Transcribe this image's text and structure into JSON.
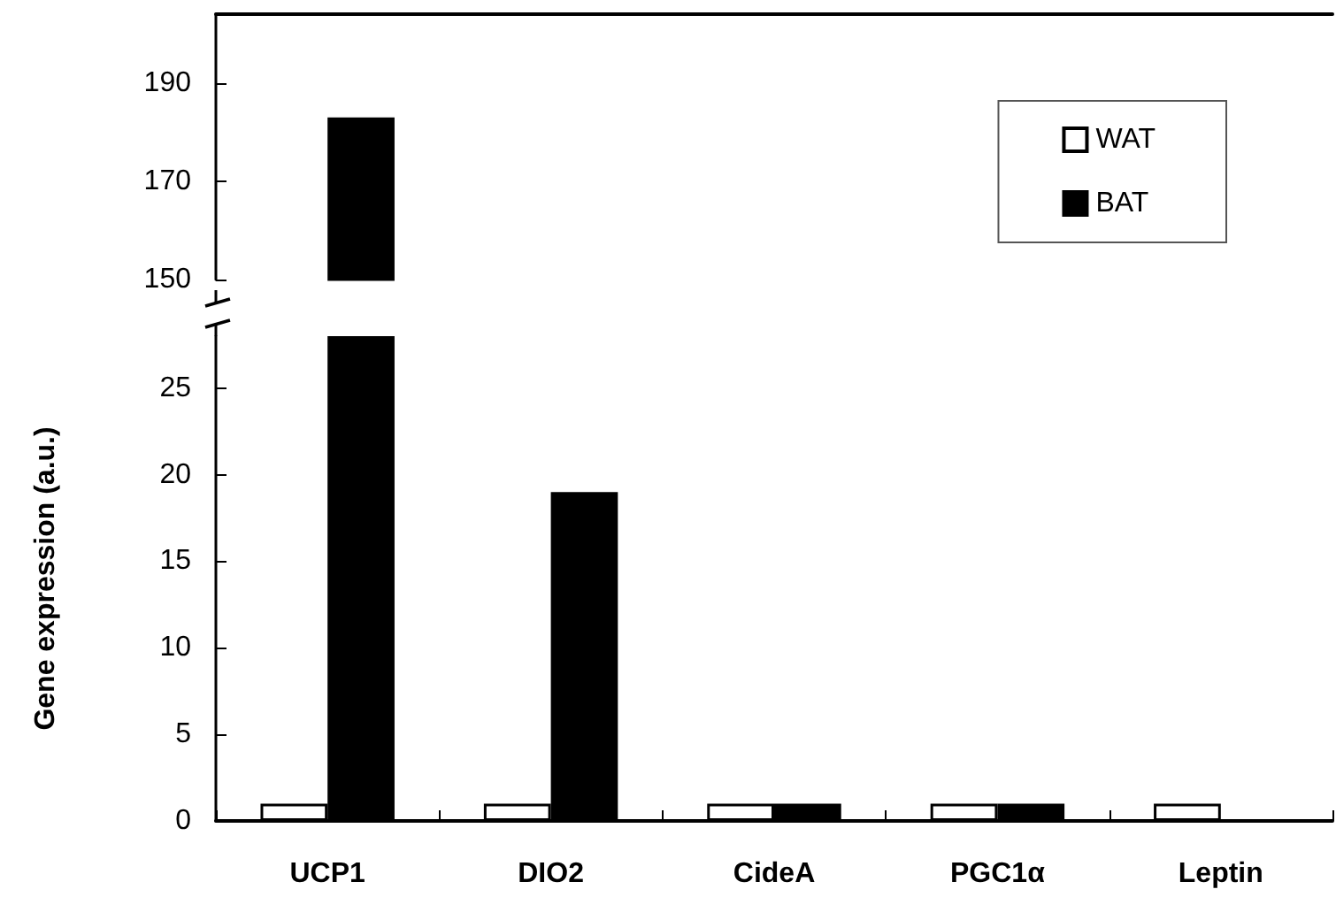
{
  "chart_data": [
    {
      "type": "bar",
      "categories": [
        null,
        null,
        null,
        null,
        null
      ],
      "series": [
        {
          "color": "#ffffff",
          "values": [
            null,
            null,
            null,
            null,
            null
          ]
        },
        {
          "color": "#000000",
          "values": [
            183,
            null,
            null,
            null,
            null
          ]
        }
      ],
      "ylim": [
        150,
        204
      ],
      "yticks": [
        150,
        170,
        190
      ],
      "tick_labels": "y",
      "grid": false
    },
    {
      "type": "bar",
      "categories": [
        "UCP1",
        "DIO2",
        "CideA",
        "PGC1α",
        "Leptin"
      ],
      "ylabel": "Gene expression (a.u.)",
      "series": [
        {
          "name": "WAT",
          "color": "#ffffff",
          "values": [
            1,
            1,
            1,
            1,
            1
          ]
        },
        {
          "name": "BAT",
          "color": "#000000",
          "values": [
            28,
            19,
            1,
            1,
            0
          ]
        }
      ],
      "ylim": [
        0,
        28
      ],
      "yticks": [
        0,
        5,
        10,
        15,
        20,
        25
      ],
      "legend": "top right",
      "grid": false
    }
  ]
}
